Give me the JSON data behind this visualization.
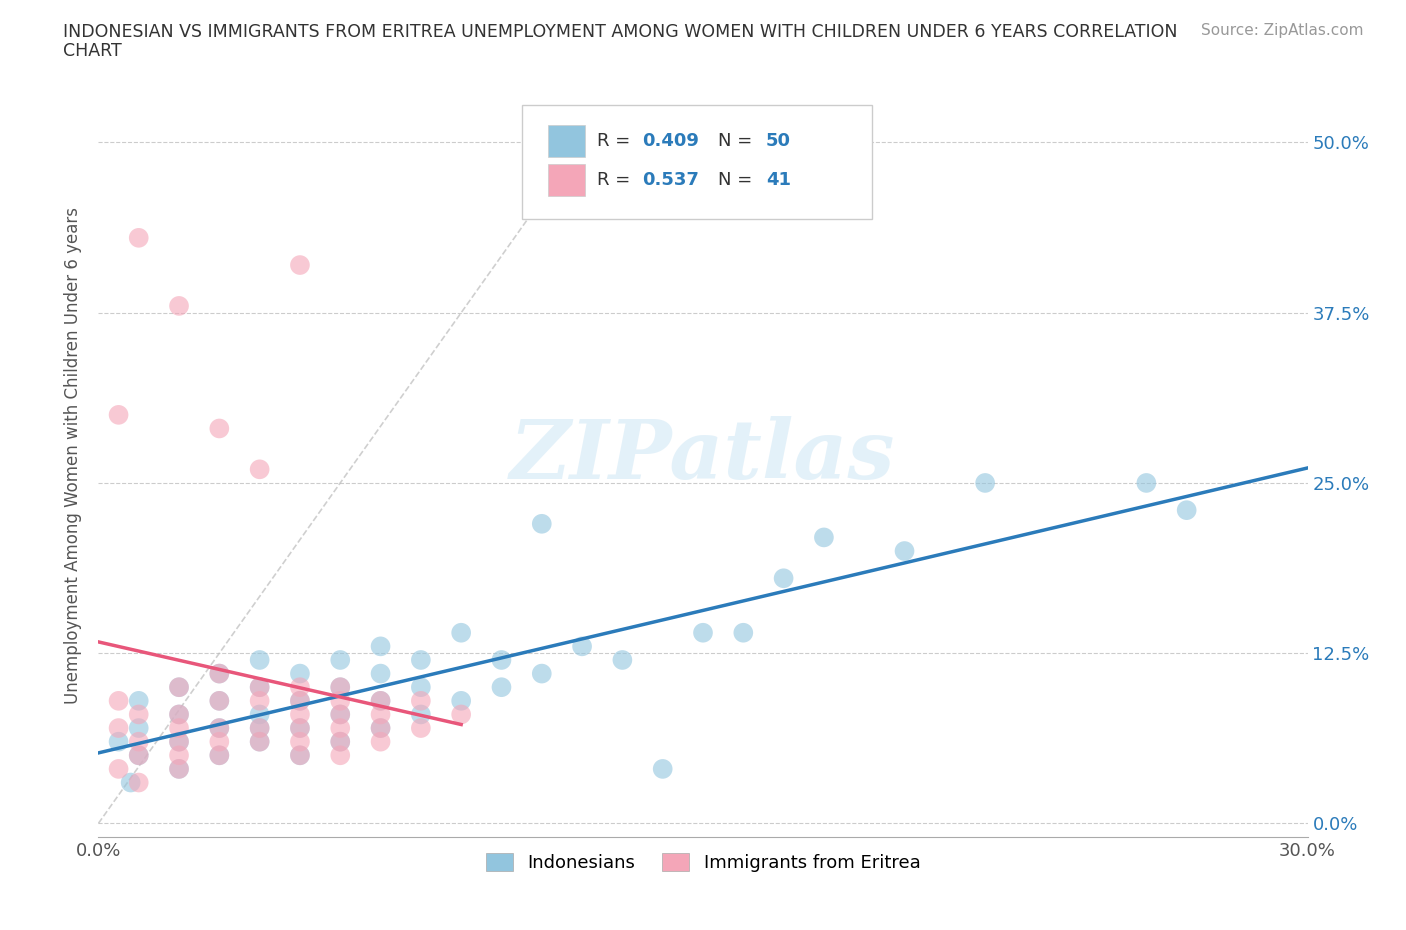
{
  "title_line1": "INDONESIAN VS IMMIGRANTS FROM ERITREA UNEMPLOYMENT AMONG WOMEN WITH CHILDREN UNDER 6 YEARS CORRELATION",
  "title_line2": "CHART",
  "source": "Source: ZipAtlas.com",
  "ylabel": "Unemployment Among Women with Children Under 6 years",
  "xlim": [
    0.0,
    0.3
  ],
  "ylim": [
    -0.01,
    0.55
  ],
  "yticks": [
    0.0,
    0.125,
    0.25,
    0.375,
    0.5
  ],
  "yticklabels": [
    "0.0%",
    "12.5%",
    "25.0%",
    "37.5%",
    "50.0%"
  ],
  "xticks": [
    0.0,
    0.1,
    0.2,
    0.3
  ],
  "xticklabels": [
    "0.0%",
    "",
    "",
    "30.0%"
  ],
  "blue_color": "#92c5de",
  "pink_color": "#f4a6b8",
  "blue_line_color": "#2b7bba",
  "pink_line_color": "#e8567a",
  "R_blue": 0.409,
  "N_blue": 50,
  "R_pink": 0.537,
  "N_pink": 41,
  "legend_labels": [
    "Indonesians",
    "Immigrants from Eritrea"
  ],
  "watermark": "ZIPatlas",
  "blue_scatter_x": [
    0.005,
    0.008,
    0.01,
    0.01,
    0.01,
    0.02,
    0.02,
    0.02,
    0.02,
    0.03,
    0.03,
    0.03,
    0.03,
    0.04,
    0.04,
    0.04,
    0.04,
    0.04,
    0.05,
    0.05,
    0.05,
    0.05,
    0.06,
    0.06,
    0.06,
    0.06,
    0.07,
    0.07,
    0.07,
    0.07,
    0.08,
    0.08,
    0.08,
    0.09,
    0.09,
    0.1,
    0.1,
    0.11,
    0.11,
    0.12,
    0.13,
    0.14,
    0.15,
    0.16,
    0.17,
    0.18,
    0.2,
    0.22,
    0.26,
    0.27
  ],
  "blue_scatter_y": [
    0.06,
    0.03,
    0.07,
    0.09,
    0.05,
    0.08,
    0.1,
    0.06,
    0.04,
    0.09,
    0.07,
    0.11,
    0.05,
    0.08,
    0.06,
    0.1,
    0.12,
    0.07,
    0.09,
    0.07,
    0.11,
    0.05,
    0.1,
    0.08,
    0.12,
    0.06,
    0.09,
    0.11,
    0.07,
    0.13,
    0.08,
    0.1,
    0.12,
    0.09,
    0.14,
    0.1,
    0.12,
    0.11,
    0.22,
    0.13,
    0.12,
    0.04,
    0.14,
    0.14,
    0.18,
    0.21,
    0.2,
    0.25,
    0.25,
    0.23
  ],
  "pink_scatter_x": [
    0.005,
    0.005,
    0.005,
    0.01,
    0.01,
    0.01,
    0.01,
    0.02,
    0.02,
    0.02,
    0.02,
    0.02,
    0.02,
    0.03,
    0.03,
    0.03,
    0.03,
    0.03,
    0.04,
    0.04,
    0.04,
    0.04,
    0.05,
    0.05,
    0.05,
    0.05,
    0.05,
    0.05,
    0.06,
    0.06,
    0.06,
    0.06,
    0.06,
    0.06,
    0.07,
    0.07,
    0.07,
    0.07,
    0.08,
    0.08,
    0.09
  ],
  "pink_scatter_y": [
    0.04,
    0.07,
    0.09,
    0.03,
    0.06,
    0.08,
    0.05,
    0.05,
    0.08,
    0.06,
    0.1,
    0.04,
    0.07,
    0.06,
    0.09,
    0.07,
    0.11,
    0.05,
    0.07,
    0.09,
    0.06,
    0.1,
    0.06,
    0.08,
    0.1,
    0.05,
    0.07,
    0.09,
    0.07,
    0.09,
    0.06,
    0.1,
    0.08,
    0.05,
    0.07,
    0.09,
    0.06,
    0.08,
    0.07,
    0.09,
    0.08
  ],
  "pink_outlier_x": [
    0.005,
    0.01,
    0.02,
    0.03,
    0.04,
    0.05
  ],
  "pink_outlier_y": [
    0.3,
    0.43,
    0.38,
    0.29,
    0.26,
    0.41
  ]
}
